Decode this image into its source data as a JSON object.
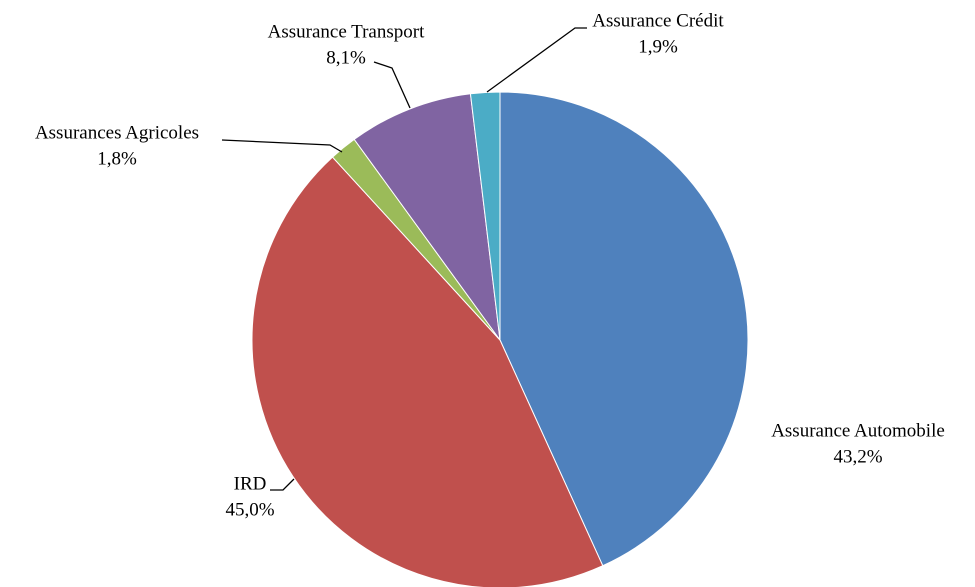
{
  "chart_data": {
    "type": "pie",
    "categories": [
      "Assurance Automobile",
      "IRD",
      "Assurances Agricoles",
      "Assurance Transport",
      "Assurance Crédit"
    ],
    "values": [
      43.2,
      45.0,
      1.8,
      8.1,
      1.9
    ],
    "value_labels": [
      "43,2%",
      "45,0%",
      "1,8%",
      "8,1%",
      "1,9%"
    ],
    "colors": [
      "#4f81bd",
      "#c0504d",
      "#9bbb59",
      "#8064a2",
      "#4bacc6"
    ]
  }
}
